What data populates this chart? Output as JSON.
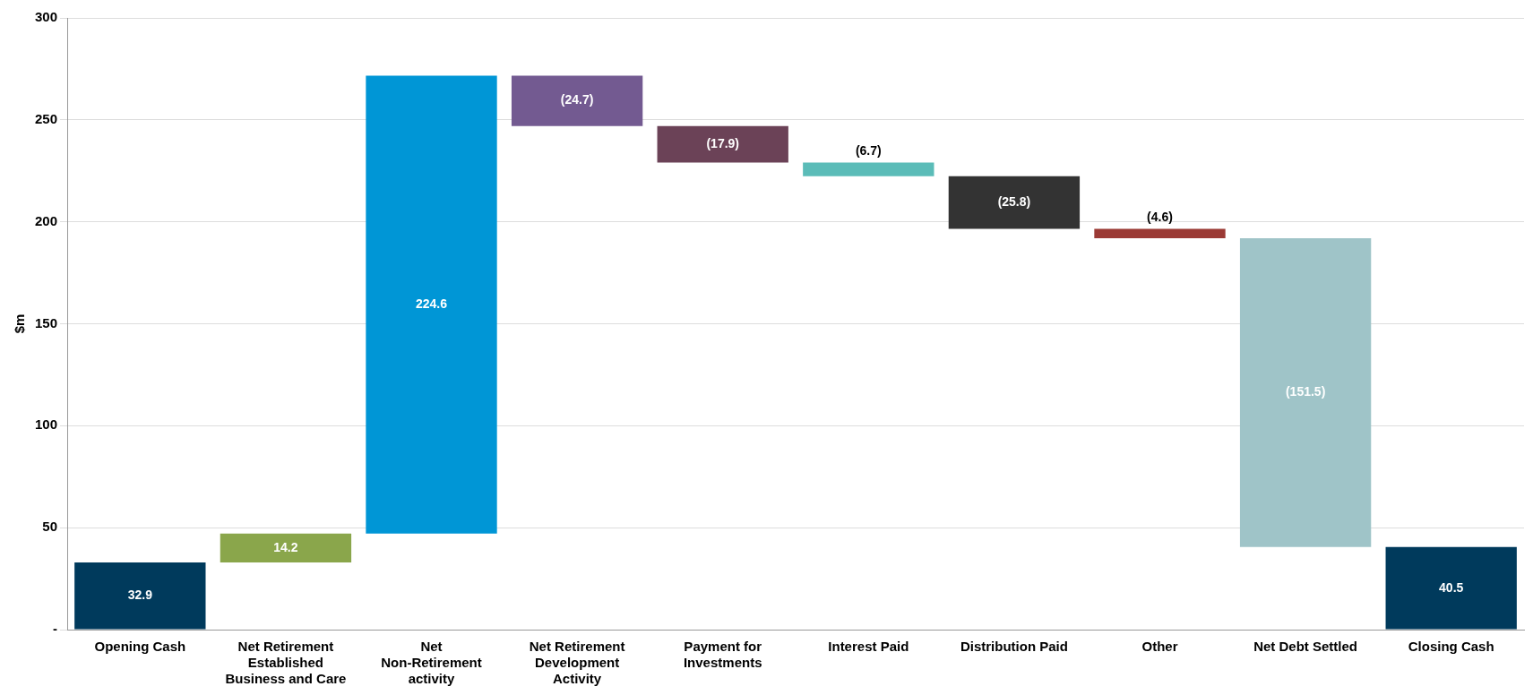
{
  "chart_data": {
    "type": "bar",
    "ylabel": "$m",
    "categories": [
      "Opening Cash",
      "Net Retirement Established Business and Care",
      "Net Non-Retirement activity",
      "Net Retirement Development Activity",
      "Payment for Investments",
      "Interest Paid",
      "Distribution Paid",
      "Other",
      "Net Debt Settled",
      "Closing Cash"
    ],
    "values": [
      32.9,
      14.2,
      224.6,
      -24.7,
      -17.9,
      -6.7,
      -25.8,
      -4.6,
      -151.5,
      40.5
    ],
    "base": [
      0,
      32.9,
      47.1,
      271.7,
      247.0,
      229.1,
      222.4,
      196.6,
      192.0,
      0
    ],
    "colors": [
      "#003a5c",
      "#8aa64b",
      "#0096d6",
      "#735a91",
      "#6b4257",
      "#5bbcb8",
      "#333333",
      "#9b3a35",
      "#9fc4c8",
      "#003a5c"
    ],
    "value_labels": [
      "32.9",
      "14.2",
      "224.6",
      "(24.7)",
      "(17.9)",
      "(6.7)",
      "(25.8)",
      "(4.6)",
      "(151.5)",
      "40.5"
    ],
    "ylim": [
      0,
      300
    ],
    "yticks": [
      {
        "value": 0,
        "label": "-"
      },
      50,
      100,
      150,
      200,
      250,
      300
    ],
    "grid": "y",
    "legend": false
  }
}
